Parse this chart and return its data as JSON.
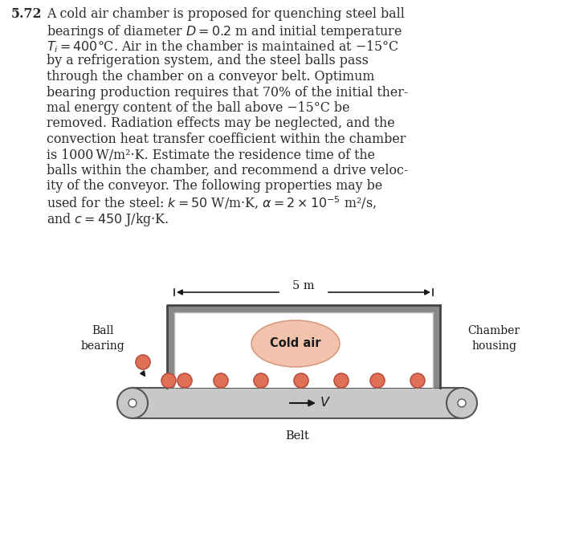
{
  "bg_color": "#ffffff",
  "text_color": "#2a2a2a",
  "problem_number": "5.72",
  "problem_text_lines": [
    [
      "A cold air chamber is proposed for quenching steel ball",
      false
    ],
    [
      "bearings of diameter $D = 0.2$ m and initial temperature",
      false
    ],
    [
      "$T_i = 400$°C. Air in the chamber is maintained at −15°C",
      false
    ],
    [
      "by a refrigeration system, and the steel balls pass",
      false
    ],
    [
      "through the chamber on a conveyor belt. Optimum",
      false
    ],
    [
      "bearing production requires that 70% of the initial ther-",
      false
    ],
    [
      "mal energy content of the ball above −15°C be",
      false
    ],
    [
      "removed. Radiation effects may be neglected, and the",
      false
    ],
    [
      "convection heat transfer coefficient within the chamber",
      false
    ],
    [
      "is 1000 W/m²·K. Estimate the residence time of the",
      false
    ],
    [
      "balls within the chamber, and recommend a drive veloc-",
      false
    ],
    [
      "ity of the conveyor. The following properties may be",
      false
    ],
    [
      "used for the steel: $k = 50$ W/m·K, $\\alpha = 2 \\times 10^{-5}$ m²/s,",
      false
    ],
    [
      "and $c = 450$ J/kg·K.",
      false
    ]
  ],
  "diagram": {
    "chamber_wall_color": "#888888",
    "chamber_wall_inner": "#aaaaaa",
    "chamber_interior": "#ffffff",
    "belt_color": "#c8c8c8",
    "belt_edge": "#555555",
    "ball_color": "#e07055",
    "ball_outline": "#b85040",
    "cold_air_color": "#f2c0a8",
    "cold_air_edge": "#d8967a",
    "arrow_color": "#1a1a1a"
  }
}
